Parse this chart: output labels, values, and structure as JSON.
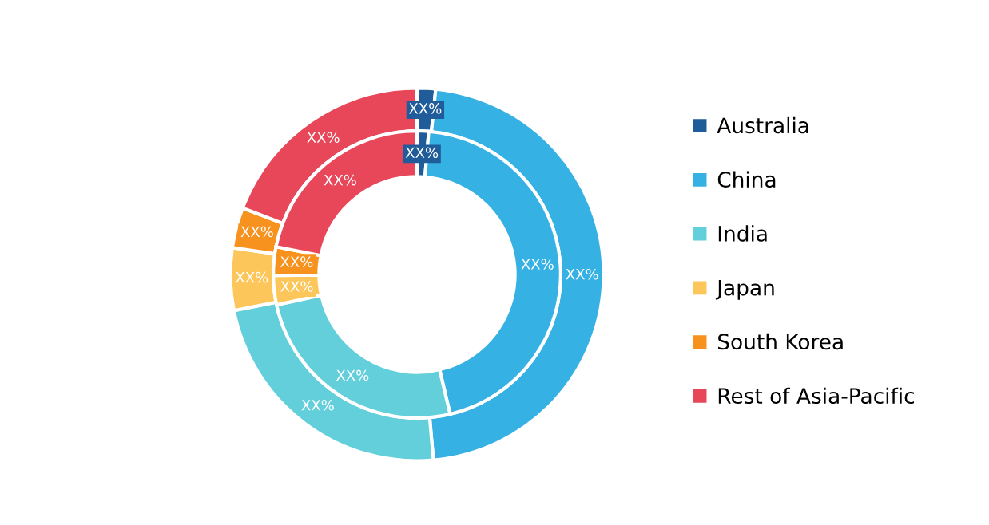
{
  "chart_data": {
    "type": "donut",
    "legend": "right",
    "categories": [
      "Australia",
      "China",
      "India",
      "Japan",
      "South Korea",
      "Rest of Asia-Pacific"
    ],
    "colors": [
      "#1f5c99",
      "#35b1e4",
      "#62cfdb",
      "#fdc65a",
      "#f7921e",
      "#e8475a"
    ],
    "series": [
      {
        "values": [
          1.6,
          47,
          23.3,
          5.4,
          3.5,
          19.2
        ],
        "value_labels": [
          "XX%",
          "XX%",
          "XX%",
          "XX%",
          "XX%",
          "XX%"
        ]
      },
      {
        "values": [
          1.3,
          45,
          25.3,
          3.3,
          3.2,
          21.9
        ],
        "value_labels": [
          "XX%",
          "XX%",
          "XX%",
          "XX%",
          "XX%",
          "XX%"
        ]
      }
    ]
  }
}
